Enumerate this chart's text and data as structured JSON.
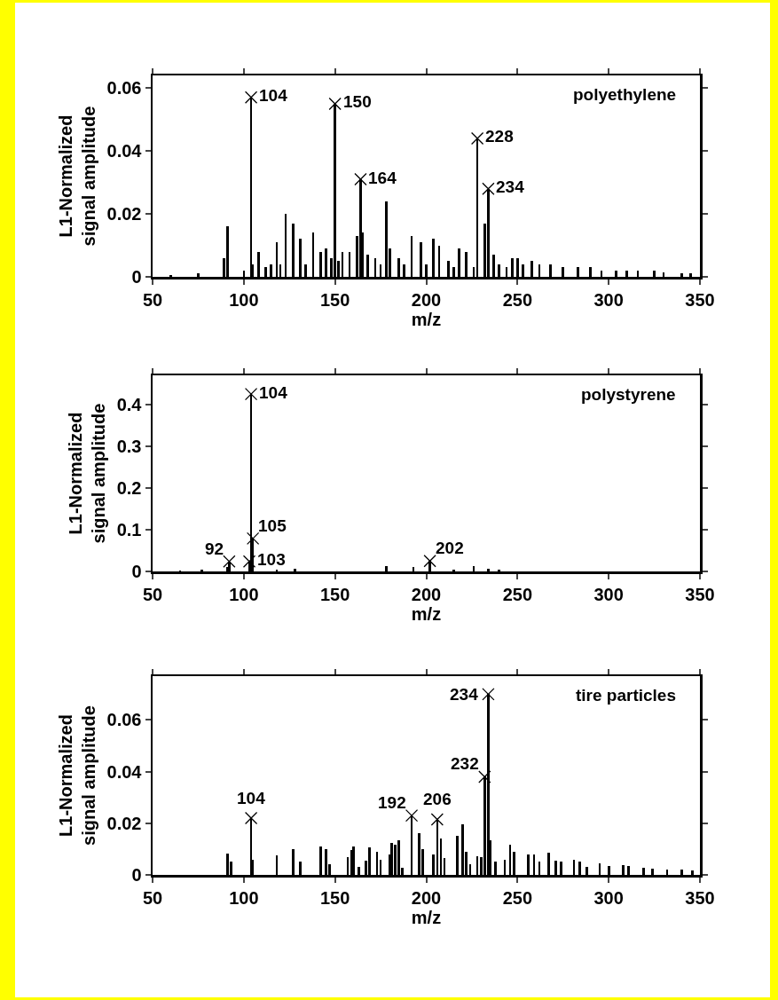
{
  "chart_data": [
    {
      "type": "bar",
      "xlabel": "m/z",
      "ylabel": "L1-Normalized\nsignal amplitude",
      "xlim": [
        50,
        350
      ],
      "xticks": [
        50,
        100,
        150,
        200,
        250,
        300,
        350
      ],
      "ylim": [
        0,
        0.064
      ],
      "yticks": [
        0,
        0.02,
        0.04,
        0.06
      ],
      "series": [
        {
          "color": "#000000",
          "x": [
            60,
            75,
            89,
            91,
            100,
            104,
            105,
            108,
            112,
            115,
            118,
            120,
            123,
            127,
            131,
            134,
            138,
            142,
            145,
            148,
            150,
            152,
            154,
            158,
            162,
            164,
            165,
            168,
            172,
            175,
            178,
            180,
            185,
            188,
            192,
            197,
            200,
            204,
            207,
            212,
            215,
            218,
            222,
            226,
            228,
            232,
            234,
            237,
            240,
            244,
            247,
            250,
            253,
            258,
            262,
            268,
            275,
            283,
            290,
            296,
            304,
            310,
            316,
            325,
            330,
            340,
            345
          ],
          "values": [
            0.0005,
            0.001,
            0.006,
            0.016,
            0.002,
            0.057,
            0.004,
            0.008,
            0.003,
            0.004,
            0.011,
            0.004,
            0.02,
            0.017,
            0.012,
            0.004,
            0.014,
            0.008,
            0.009,
            0.006,
            0.055,
            0.005,
            0.008,
            0.008,
            0.013,
            0.031,
            0.014,
            0.007,
            0.006,
            0.004,
            0.024,
            0.009,
            0.006,
            0.004,
            0.013,
            0.011,
            0.004,
            0.012,
            0.01,
            0.005,
            0.003,
            0.009,
            0.008,
            0.003,
            0.044,
            0.017,
            0.028,
            0.007,
            0.004,
            0.003,
            0.006,
            0.006,
            0.004,
            0.005,
            0.004,
            0.004,
            0.003,
            0.003,
            0.003,
            0.002,
            0.002,
            0.002,
            0.002,
            0.002,
            0.0015,
            0.001,
            0.001
          ]
        },
        {
          "type": "scatter",
          "marker": "cross",
          "color": "#000000",
          "x": [
            104,
            150,
            164,
            228,
            234
          ],
          "values": [
            0.057,
            0.055,
            0.031,
            0.044,
            0.028
          ]
        }
      ],
      "annotations": [
        "polyethylene",
        {
          "text": "104",
          "x": 104,
          "y": 0.057
        },
        {
          "text": "150",
          "x": 150,
          "y": 0.055
        },
        {
          "text": "164",
          "x": 164,
          "y": 0.031
        },
        {
          "text": "228",
          "x": 228,
          "y": 0.044
        },
        {
          "text": "234",
          "x": 234,
          "y": 0.028
        }
      ]
    },
    {
      "type": "bar",
      "xlabel": "m/z",
      "ylabel": "L1-Normalized\nsignal amplitude",
      "xlim": [
        50,
        350
      ],
      "xticks": [
        50,
        100,
        150,
        200,
        250,
        300,
        350
      ],
      "ylim": [
        0,
        0.47
      ],
      "yticks": [
        0,
        0.1,
        0.2,
        0.3,
        0.4
      ],
      "series": [
        {
          "color": "#000000",
          "x": [
            65,
            77,
            91,
            92,
            103,
            104,
            105,
            118,
            128,
            178,
            193,
            202,
            215,
            226,
            234,
            240
          ],
          "values": [
            0.002,
            0.004,
            0.01,
            0.024,
            0.024,
            0.425,
            0.079,
            0.005,
            0.006,
            0.012,
            0.01,
            0.025,
            0.004,
            0.012,
            0.006,
            0.004
          ]
        },
        {
          "type": "scatter",
          "marker": "cross",
          "color": "#000000",
          "x": [
            92,
            103,
            104,
            105,
            202
          ],
          "values": [
            0.024,
            0.024,
            0.425,
            0.079,
            0.025
          ]
        }
      ],
      "annotations": [
        "polystyrene",
        {
          "text": "104",
          "x": 104,
          "y": 0.425
        },
        {
          "text": "105",
          "x": 105,
          "y": 0.079
        },
        {
          "text": "92",
          "x": 92,
          "y": 0.024
        },
        {
          "text": "103",
          "x": 103,
          "y": 0.024
        },
        {
          "text": "202",
          "x": 202,
          "y": 0.025
        }
      ]
    },
    {
      "type": "bar",
      "xlabel": "m/z",
      "ylabel": "L1-Normalized\nsignal amplitude",
      "xlim": [
        50,
        350
      ],
      "xticks": [
        50,
        100,
        150,
        200,
        250,
        300,
        350
      ],
      "ylim": [
        0,
        0.077
      ],
      "yticks": [
        0,
        0.02,
        0.04,
        0.06
      ],
      "series": [
        {
          "color": "#000000",
          "x": [
            91,
            93,
            104,
            105,
            118,
            127,
            131,
            142,
            145,
            147,
            157,
            159,
            160,
            163,
            167,
            169,
            173,
            175,
            180,
            181,
            183,
            185,
            187,
            192,
            196,
            198,
            204,
            206,
            208,
            210,
            217,
            220,
            222,
            224,
            228,
            230,
            232,
            234,
            235,
            238,
            243,
            246,
            248,
            256,
            259,
            262,
            267,
            271,
            274,
            281,
            284,
            288,
            295,
            300,
            308,
            311,
            319,
            324,
            332,
            340,
            346
          ],
          "values": [
            0.0083,
            0.005,
            0.022,
            0.006,
            0.0075,
            0.01,
            0.005,
            0.011,
            0.01,
            0.004,
            0.007,
            0.0095,
            0.011,
            0.003,
            0.0055,
            0.0105,
            0.009,
            0.006,
            0.0078,
            0.0123,
            0.0118,
            0.0135,
            0.0026,
            0.023,
            0.0163,
            0.01,
            0.0078,
            0.0215,
            0.014,
            0.0066,
            0.0152,
            0.0195,
            0.009,
            0.004,
            0.0072,
            0.007,
            0.038,
            0.07,
            0.0135,
            0.005,
            0.006,
            0.0118,
            0.009,
            0.0078,
            0.0078,
            0.005,
            0.0086,
            0.0055,
            0.005,
            0.0058,
            0.005,
            0.0032,
            0.0046,
            0.0036,
            0.0038,
            0.0034,
            0.0026,
            0.0024,
            0.002,
            0.002,
            0.0018
          ]
        },
        {
          "type": "scatter",
          "marker": "cross",
          "color": "#000000",
          "x": [
            104,
            192,
            206,
            232,
            234
          ],
          "values": [
            0.022,
            0.023,
            0.0215,
            0.038,
            0.07
          ]
        }
      ],
      "annotations": [
        "tire particles",
        {
          "text": "104",
          "x": 104,
          "y": 0.022
        },
        {
          "text": "192",
          "x": 192,
          "y": 0.023
        },
        {
          "text": "206",
          "x": 206,
          "y": 0.0215
        },
        {
          "text": "232",
          "x": 232,
          "y": 0.038
        },
        {
          "text": "234",
          "x": 234,
          "y": 0.07
        }
      ]
    }
  ]
}
